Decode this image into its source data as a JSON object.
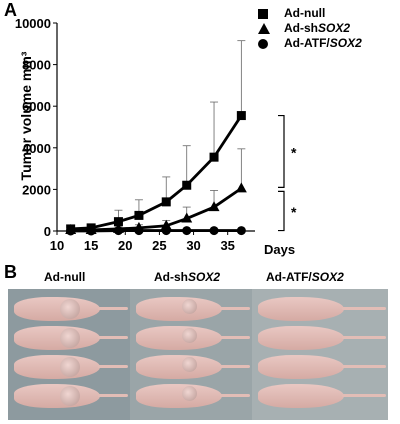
{
  "panel_a_label": "A",
  "panel_b_label": "B",
  "chart_data": {
    "type": "line",
    "ylabel": "Tumor volume mm³",
    "xlabel": "Days",
    "xlim": [
      10,
      39
    ],
    "ylim": [
      0,
      10000
    ],
    "xticks": [
      10,
      15,
      20,
      25,
      30,
      35
    ],
    "yticks": [
      0,
      2000,
      4000,
      6000,
      8000,
      10000
    ],
    "x": [
      12,
      15,
      19,
      22,
      26,
      29,
      33,
      37
    ],
    "series": [
      {
        "name": "Ad-null",
        "marker": "square",
        "values": [
          100,
          150,
          450,
          750,
          1400,
          2200,
          3550,
          5550
        ],
        "error_up": [
          50,
          150,
          550,
          750,
          1200,
          1900,
          2650,
          3600
        ]
      },
      {
        "name": "Ad-shSOX2",
        "marker": "triangle",
        "values": [
          50,
          50,
          100,
          150,
          250,
          600,
          1150,
          2050
        ],
        "error_up": [
          50,
          50,
          100,
          150,
          250,
          550,
          800,
          1900
        ]
      },
      {
        "name": "Ad-ATF/SOX2",
        "marker": "circle",
        "values": [
          0,
          0,
          20,
          20,
          20,
          20,
          20,
          20
        ],
        "error_up": [
          0,
          0,
          0,
          0,
          0,
          0,
          0,
          0
        ]
      }
    ],
    "significance": [
      "*",
      "*"
    ],
    "grid": false,
    "legend_position": "top-right"
  },
  "legend": [
    {
      "prefix": "Ad-null",
      "italic": "",
      "marker": "square"
    },
    {
      "prefix": "Ad-sh",
      "italic": "SOX2",
      "marker": "triangle"
    },
    {
      "prefix": "Ad-ATF/",
      "italic": "SOX2",
      "marker": "circle"
    }
  ],
  "photo_labels": [
    {
      "prefix": "Ad-null",
      "italic": ""
    },
    {
      "prefix": "Ad-sh",
      "italic": "SOX2"
    },
    {
      "prefix": "Ad-ATF/",
      "italic": "SOX2"
    }
  ]
}
